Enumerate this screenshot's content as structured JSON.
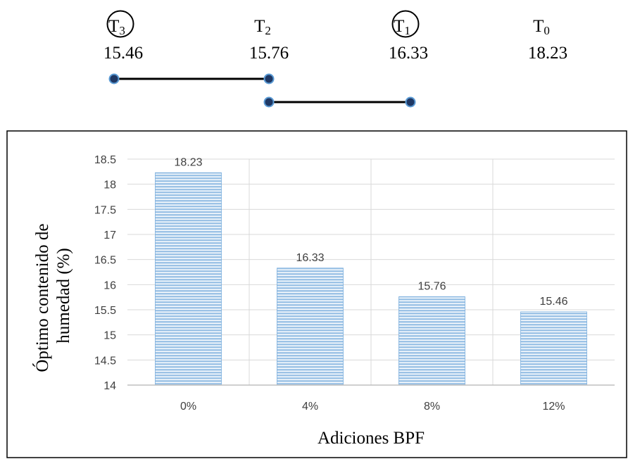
{
  "treatments": [
    {
      "label_base": "T",
      "label_sub": "3",
      "value": "15.46",
      "circled": true
    },
    {
      "label_base": "T",
      "label_sub": "2",
      "value": "15.76",
      "circled": false
    },
    {
      "label_base": "T",
      "label_sub": "1",
      "value": "16.33",
      "circled": true
    },
    {
      "label_base": "T",
      "label_sub": "0",
      "value": "18.23",
      "circled": false
    }
  ],
  "groupings": [
    {
      "from_index": 0,
      "to_index": 1
    },
    {
      "from_index": 1,
      "to_index": 2
    }
  ],
  "colors": {
    "bar_fill": "#9dc3e6",
    "bar_stripe": "#ffffff",
    "bar_edge": "#5b9bd5",
    "grid": "#d9d9d9",
    "axis": "#bfbfbf",
    "dot_fill": "#1f3864",
    "dot_stroke": "#5b9bd5",
    "line": "#000000"
  },
  "chart_data": {
    "type": "bar",
    "categories": [
      "0%",
      "4%",
      "8%",
      "12%"
    ],
    "values": [
      18.23,
      16.33,
      15.76,
      15.46
    ],
    "data_labels": [
      "18.23",
      "16.33",
      "15.76",
      "15.46"
    ],
    "title": "",
    "xlabel": "Adiciones BPF",
    "ylabel_lines": [
      "Óptimo contenido de",
      "humedad (%)"
    ],
    "ylim": [
      14,
      18.5
    ],
    "yticks": [
      "14",
      "14.5",
      "15",
      "15.5",
      "16",
      "16.5",
      "17",
      "17.5",
      "18",
      "18.5"
    ],
    "grid": true,
    "legend": "none"
  }
}
